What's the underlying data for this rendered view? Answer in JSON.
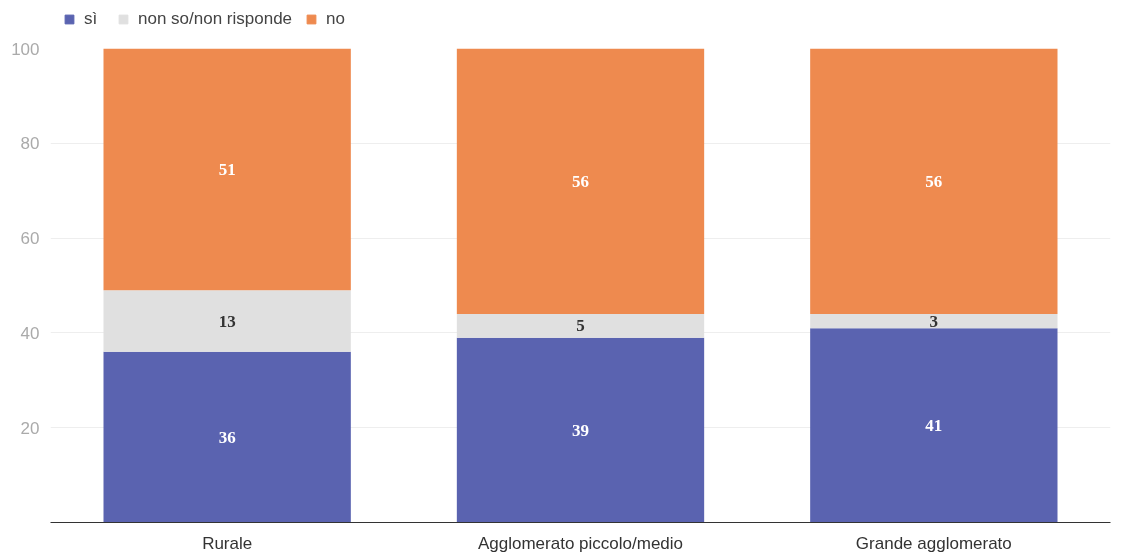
{
  "chart_data": {
    "type": "bar",
    "stacked": true,
    "categories": [
      "Rurale",
      "Agglomerato piccolo/medio",
      "Grande agglomerato"
    ],
    "series": [
      {
        "name": "sì",
        "color": "#5a63b0",
        "values": [
          36,
          39,
          41
        ]
      },
      {
        "name": "non so/non risponde",
        "color": "#e0e0e0",
        "values": [
          13,
          5,
          3
        ]
      },
      {
        "name": "no",
        "color": "#ee8a4f",
        "values": [
          51,
          56,
          56
        ]
      }
    ],
    "ylim": [
      0,
      100
    ],
    "yticks": [
      20,
      40,
      60,
      80,
      100
    ],
    "grid": "y",
    "legend": "top left",
    "data_labels": true
  }
}
